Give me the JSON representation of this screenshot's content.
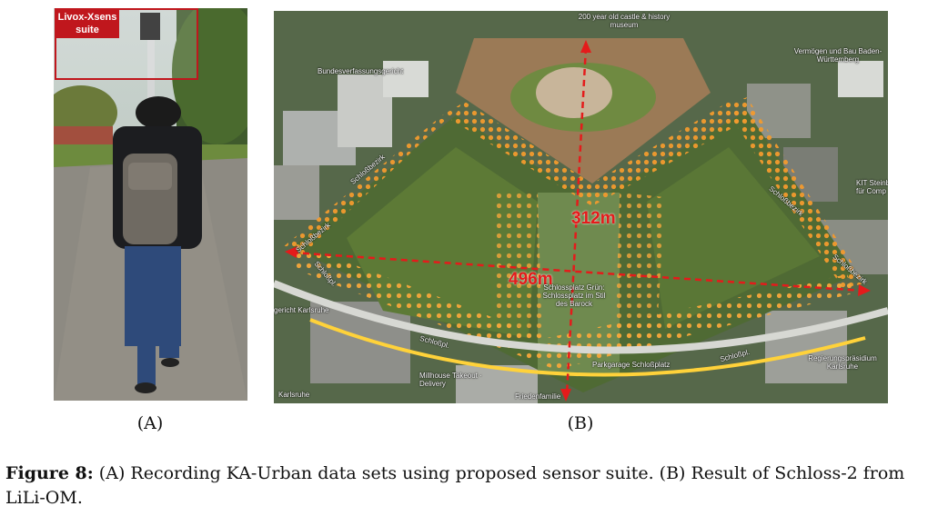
{
  "panel_a": {
    "badge_line1": "Livox-Xsens",
    "badge_line2": "suite",
    "sublabel": "(A)"
  },
  "panel_b": {
    "sublabel": "(B)",
    "measure_vertical": "312m",
    "measure_horizontal": "496m",
    "map_labels": [
      "200 year old castle & history museum",
      "Vermögen und Bau Baden-Württemberg",
      "Bundesverfassungsgericht",
      "KIT Steinb. für Comp",
      "Schlossplatz Grün: Schlossplatz im Stil des Barock",
      "Regierungspräsidium Karlsruhe",
      "gericht Karlsruhe",
      "Schloßpl.",
      "Schloßpl.",
      "Schloßpl.",
      "Schloßbezirk",
      "Schloßbezirk",
      "Schloßbezirk",
      "Schloßbezirk",
      "Millhouse Takeout · Delivery",
      "Parkgarage Schloßplatz",
      "Friedenfamilie",
      "Karlsruhe"
    ]
  },
  "caption": {
    "prefix": "Figure 8:",
    "text": " (A) Recording KA-Urban data sets using proposed sensor suite. (B) Result of Schloss-2 from LiLi-OM."
  }
}
